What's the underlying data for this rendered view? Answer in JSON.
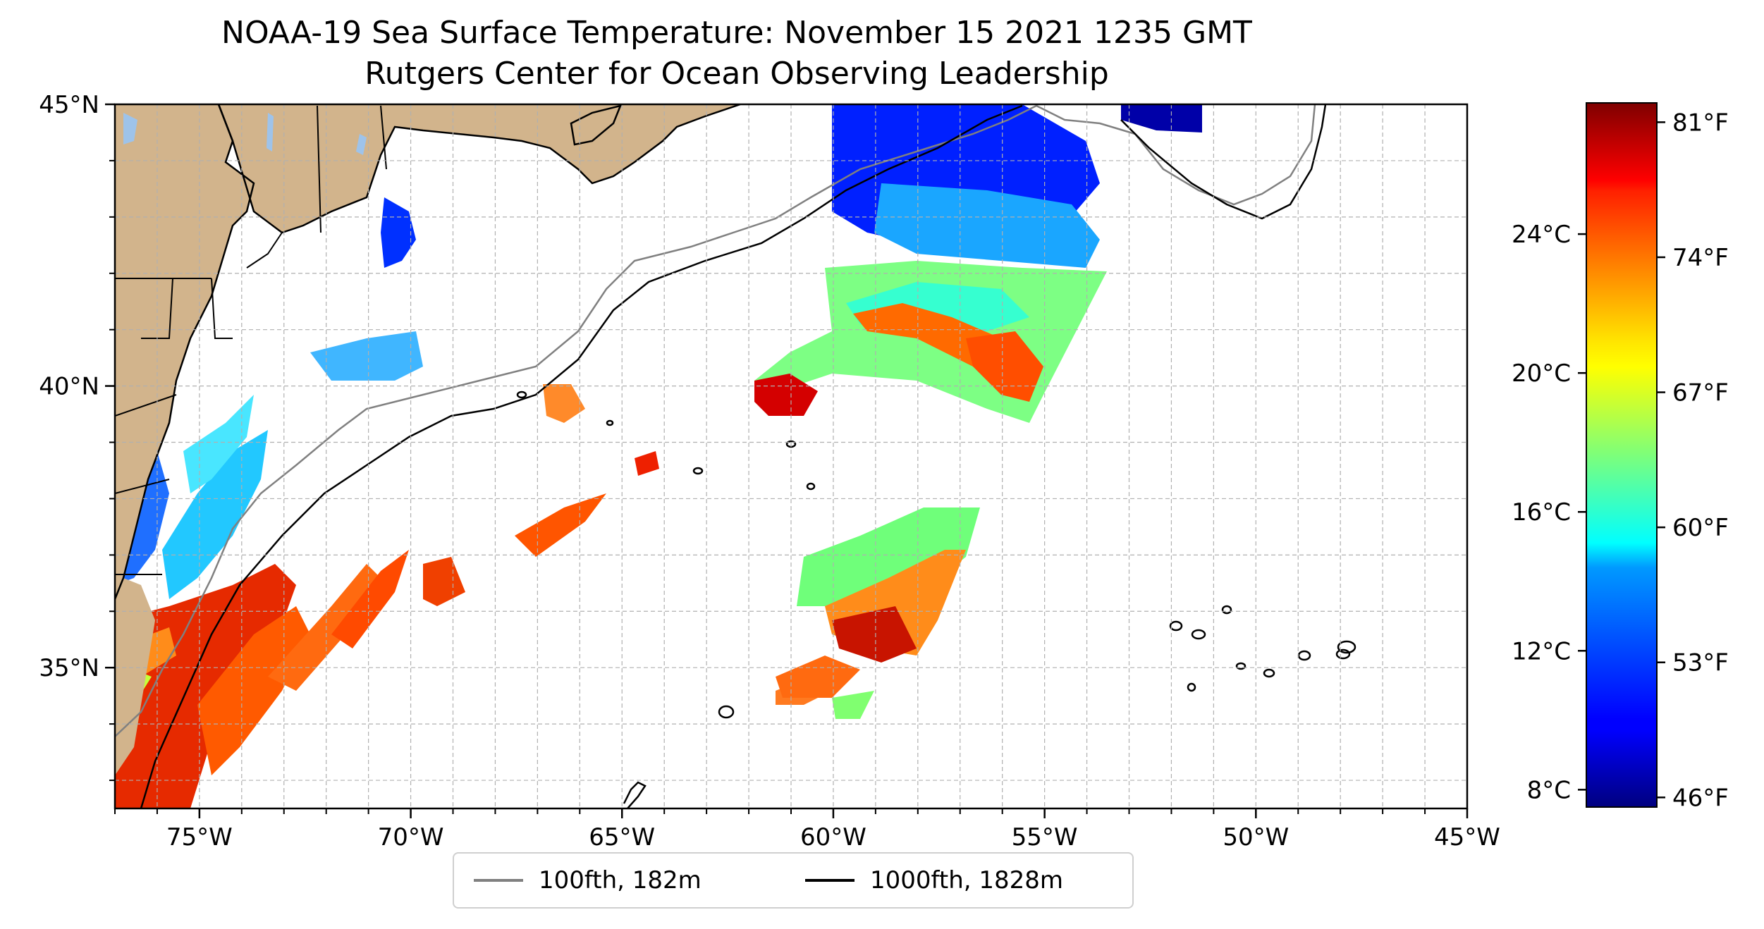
{
  "title": {
    "line1": "NOAA-19 Sea Surface Temperature: November 15 2021 1235 GMT",
    "line2": "Rutgers Center for Ocean Observing Leadership"
  },
  "map": {
    "lon_range": [
      -77,
      -45
    ],
    "lat_range": [
      32.5,
      45
    ],
    "land_color": "#d2b48c",
    "lake_color": "#9ec3ea",
    "grid": "dashed, every 1 degree",
    "lat_ticks": [
      {
        "value": 45,
        "label": "45°N"
      },
      {
        "value": 40,
        "label": "40°N"
      },
      {
        "value": 35,
        "label": "35°N"
      }
    ],
    "lon_ticks": [
      {
        "value": -75,
        "label": "75°W"
      },
      {
        "value": -70,
        "label": "70°W"
      },
      {
        "value": -65,
        "label": "65°W"
      },
      {
        "value": -60,
        "label": "60°W"
      },
      {
        "value": -55,
        "label": "55°W"
      },
      {
        "value": -50,
        "label": "50°W"
      },
      {
        "value": -45,
        "label": "45°W"
      }
    ]
  },
  "legend": {
    "placement": "bottom-center",
    "items": [
      {
        "label": "100fth, 182m",
        "color": "#808080"
      },
      {
        "label": "1000fth, 1828m",
        "color": "#000000"
      }
    ]
  },
  "colorbar": {
    "colormap": "jet",
    "range_f": [
      45.5,
      82
    ],
    "celsius_ticks": [
      {
        "value": 24,
        "label": "24°C"
      },
      {
        "value": 20,
        "label": "20°C"
      },
      {
        "value": 16,
        "label": "16°C"
      },
      {
        "value": 12,
        "label": "12°C"
      },
      {
        "value": 8,
        "label": "8°C"
      }
    ],
    "fahrenheit_ticks": [
      {
        "value": 81,
        "label": "81°F"
      },
      {
        "value": 74,
        "label": "74°F"
      },
      {
        "value": 67,
        "label": "67°F"
      },
      {
        "value": 60,
        "label": "60°F"
      },
      {
        "value": 53,
        "label": "53°F"
      },
      {
        "value": 46,
        "label": "46°F"
      }
    ]
  }
}
